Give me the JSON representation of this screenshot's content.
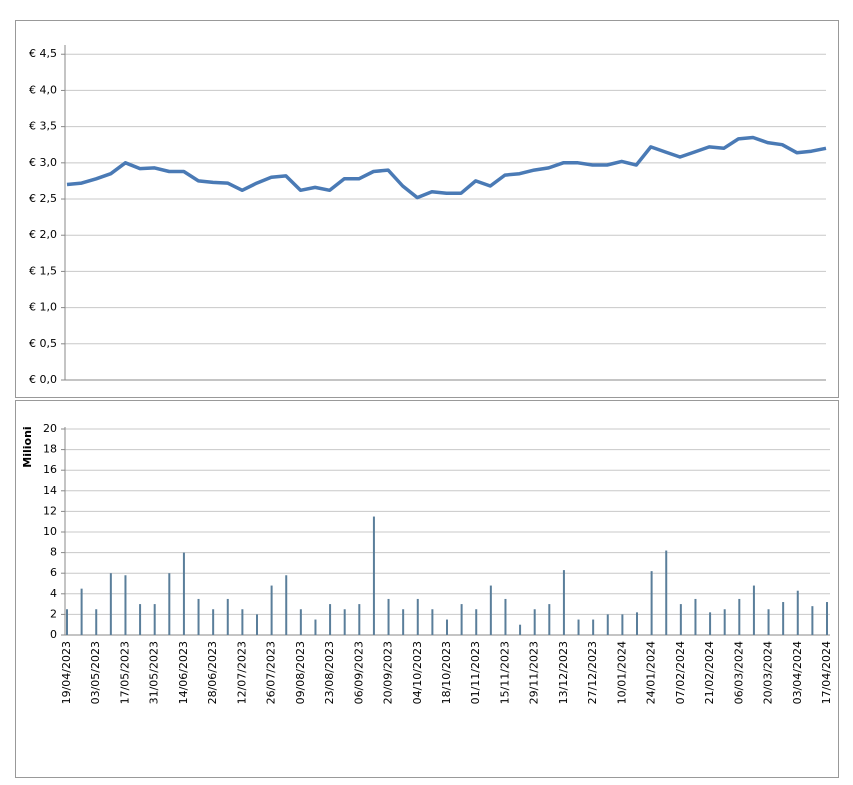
{
  "chart_data": [
    {
      "type": "line",
      "categories": [
        "19/04/2023",
        null,
        "03/05/2023",
        null,
        "17/05/2023",
        null,
        "31/05/2023",
        null,
        "14/06/2023",
        null,
        "28/06/2023",
        null,
        "12/07/2023",
        null,
        "26/07/2023",
        null,
        "09/08/2023",
        null,
        "23/08/2023",
        null,
        "06/09/2023",
        null,
        "20/09/2023",
        null,
        "04/10/2023",
        null,
        "18/10/2023",
        null,
        "01/11/2023",
        null,
        "15/11/2023",
        null,
        "29/11/2023",
        null,
        "13/12/2023",
        null,
        "27/12/2023",
        null,
        "10/01/2024",
        null,
        "24/01/2024",
        null,
        "07/02/2024",
        null,
        "21/02/2024",
        null,
        "06/03/2024",
        null,
        "20/03/2024",
        null,
        "03/04/2024",
        null,
        "17/04/2024"
      ],
      "series": [
        {
          "color": "#4a7ab5",
          "values": [
            2.7,
            2.72,
            2.78,
            2.85,
            3.0,
            2.92,
            2.93,
            2.88,
            2.88,
            2.75,
            2.73,
            2.72,
            2.62,
            2.72,
            2.8,
            2.82,
            2.62,
            2.66,
            2.62,
            2.78,
            2.78,
            2.88,
            2.9,
            2.68,
            2.52,
            2.6,
            2.58,
            2.58,
            2.75,
            2.68,
            2.83,
            2.85,
            2.9,
            2.93,
            3.0,
            3.0,
            2.97,
            2.97,
            3.02,
            2.97,
            3.22,
            3.15,
            3.08,
            3.15,
            3.22,
            3.2,
            3.33,
            3.35,
            3.28,
            3.25,
            3.14,
            3.16,
            3.2
          ]
        }
      ],
      "ylim": [
        0,
        4.6
      ],
      "yticks": [
        {
          "value": 0,
          "label": "€ 0,0"
        },
        {
          "value": 0.5,
          "label": "€ 0,5"
        },
        {
          "value": 1,
          "label": "€ 1,0"
        },
        {
          "value": 1.5,
          "label": "€ 1,5"
        },
        {
          "value": 2,
          "label": "€ 2,0"
        },
        {
          "value": 2.5,
          "label": "€ 2,5"
        },
        {
          "value": 3,
          "label": "€ 3,0"
        },
        {
          "value": 3.5,
          "label": "€ 3,5"
        },
        {
          "value": 4,
          "label": "€ 4,0"
        },
        {
          "value": 4.5,
          "label": "€ 4,5"
        }
      ],
      "grid": true
    },
    {
      "type": "bar",
      "y_label": "Milioni",
      "categories": [
        "19/04/2023",
        null,
        "03/05/2023",
        null,
        "17/05/2023",
        null,
        "31/05/2023",
        null,
        "14/06/2023",
        null,
        "28/06/2023",
        null,
        "12/07/2023",
        null,
        "26/07/2023",
        null,
        "09/08/2023",
        null,
        "23/08/2023",
        null,
        "06/09/2023",
        null,
        "20/09/2023",
        null,
        "04/10/2023",
        null,
        "18/10/2023",
        null,
        "01/11/2023",
        null,
        "15/11/2023",
        null,
        "29/11/2023",
        null,
        "13/12/2023",
        null,
        "27/12/2023",
        null,
        "10/01/2024",
        null,
        "24/01/2024",
        null,
        "07/02/2024",
        null,
        "21/02/2024",
        null,
        "06/03/2024",
        null,
        "20/03/2024",
        null,
        "03/04/2024",
        null,
        "17/04/2024"
      ],
      "series": [
        {
          "color": "#5a7e9a",
          "values": [
            2.5,
            4.5,
            2.5,
            6,
            5.8,
            3,
            3,
            6,
            8,
            3.5,
            2.5,
            3.5,
            2.5,
            2,
            4.8,
            5.8,
            2.5,
            1.5,
            3,
            2.5,
            3,
            11.5,
            3.5,
            2.5,
            3.5,
            2.5,
            1.5,
            3,
            2.5,
            4.8,
            3.5,
            1,
            2.5,
            3,
            6.3,
            1.5,
            1.5,
            2,
            2,
            2.2,
            6.2,
            8.2,
            3,
            3.5,
            2.2,
            2.5,
            3.5,
            4.8,
            2.5,
            3.2,
            4.3,
            2.8,
            3.2
          ]
        }
      ],
      "ylim": [
        0,
        20
      ],
      "yticks": [
        0,
        2,
        4,
        6,
        8,
        10,
        12,
        14,
        16,
        18,
        20
      ],
      "grid": true
    }
  ]
}
